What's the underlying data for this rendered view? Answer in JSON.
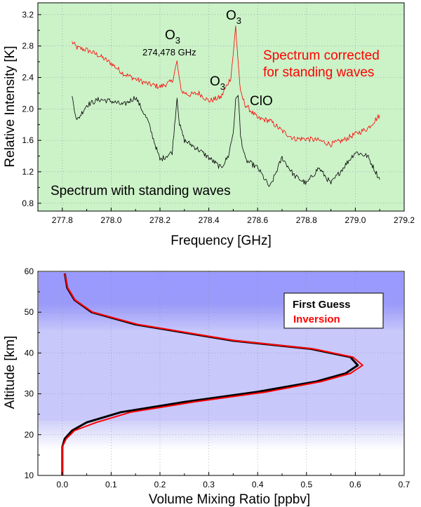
{
  "chart_data": [
    {
      "type": "line",
      "xlabel": "Frequency [GHz]",
      "ylabel": "Relative Intensity [K]",
      "xlim": [
        277.7,
        279.2
      ],
      "ylim": [
        0.7,
        3.35
      ],
      "xticks": [
        277.8,
        278.0,
        278.2,
        278.4,
        278.6,
        278.8,
        279.0,
        279.2
      ],
      "xtick_labels": [
        "277.8",
        "278.0",
        "278.2",
        "278.4",
        "278.6",
        "278.8",
        "279.0",
        "279.2"
      ],
      "yticks": [
        0.8,
        1.2,
        1.6,
        2.0,
        2.4,
        2.8,
        3.2
      ],
      "ytick_labels": [
        "0.8",
        "1.2",
        "1.6",
        "2.0",
        "2.4",
        "2.8",
        "3.2"
      ],
      "background": "#ccf2c8",
      "grid": "dotted",
      "annotations": [
        {
          "id": "o3_main",
          "text": "O",
          "sub": "3",
          "color": "#000000"
        },
        {
          "id": "o3_left",
          "text": "O",
          "sub": "3",
          "color": "#000000"
        },
        {
          "id": "freq",
          "text": "274,478 GHz",
          "color": "#000000"
        },
        {
          "id": "o3_mid",
          "text": "O",
          "sub": "3",
          "color": "#000000"
        },
        {
          "id": "clo",
          "text": "ClO",
          "color": "#000000"
        },
        {
          "id": "corrected1",
          "text": "Spectrum corrected",
          "color": "#ff0000"
        },
        {
          "id": "corrected2",
          "text": "for standing waves",
          "color": "#ff0000"
        },
        {
          "id": "standing",
          "text": "Spectrum with standing waves",
          "color": "#000000"
        }
      ],
      "series": [
        {
          "name": "Spectrum corrected for standing waves",
          "color": "#ff0000",
          "x": [
            277.84,
            277.86,
            277.9,
            277.95,
            278.0,
            278.05,
            278.1,
            278.15,
            278.2,
            278.25,
            278.27,
            278.28,
            278.29,
            278.32,
            278.36,
            278.4,
            278.45,
            278.49,
            278.5,
            278.51,
            278.52,
            278.53,
            278.55,
            278.6,
            278.65,
            278.7,
            278.75,
            278.8,
            278.85,
            278.9,
            278.95,
            279.0,
            279.05,
            279.1
          ],
          "y": [
            2.85,
            2.78,
            2.75,
            2.68,
            2.58,
            2.45,
            2.38,
            2.32,
            2.28,
            2.35,
            2.6,
            2.35,
            2.22,
            2.18,
            2.2,
            2.1,
            2.15,
            2.4,
            2.7,
            3.05,
            2.6,
            2.2,
            2.05,
            1.88,
            1.85,
            1.72,
            1.62,
            1.62,
            1.6,
            1.55,
            1.6,
            1.68,
            1.75,
            1.92
          ]
        },
        {
          "name": "Spectrum with standing waves",
          "color": "#000000",
          "x": [
            277.84,
            277.86,
            277.9,
            277.95,
            278.0,
            278.05,
            278.1,
            278.15,
            278.2,
            278.25,
            278.27,
            278.28,
            278.3,
            278.35,
            278.4,
            278.45,
            278.48,
            278.5,
            278.51,
            278.52,
            278.53,
            278.55,
            278.6,
            278.65,
            278.7,
            278.75,
            278.8,
            278.85,
            278.9,
            278.95,
            279.0,
            279.05,
            279.1
          ],
          "y": [
            2.15,
            1.85,
            2.05,
            2.12,
            2.1,
            2.05,
            2.15,
            1.85,
            1.35,
            1.45,
            2.15,
            1.8,
            1.6,
            1.5,
            1.38,
            1.25,
            1.4,
            1.7,
            2.1,
            2.2,
            1.65,
            1.35,
            1.25,
            1.0,
            1.38,
            1.15,
            1.05,
            1.25,
            1.05,
            1.25,
            1.45,
            1.4,
            1.1
          ]
        }
      ]
    },
    {
      "type": "line",
      "xlabel": "Volume Mixing Ratio [ppbv]",
      "ylabel": "Altitude [km]",
      "xlim": [
        -0.05,
        0.7
      ],
      "ylim": [
        10,
        60
      ],
      "xticks": [
        0.0,
        0.1,
        0.2,
        0.3,
        0.4,
        0.5,
        0.6,
        0.7
      ],
      "xtick_labels": [
        "0.0",
        "0.1",
        "0.2",
        "0.3",
        "0.4",
        "0.5",
        "0.6",
        "0.7"
      ],
      "yticks": [
        10,
        20,
        30,
        40,
        50,
        60
      ],
      "ytick_labels": [
        "10",
        "20",
        "30",
        "40",
        "50",
        "60"
      ],
      "grid": "dotted",
      "legend": {
        "position": "upper-right",
        "entries": [
          {
            "label": "First Guess",
            "color": "#000000"
          },
          {
            "label": "Inversion",
            "color": "#ff0000"
          }
        ]
      },
      "series": [
        {
          "name": "First Guess",
          "color": "#000000",
          "x": [
            0.0,
            0.0,
            0.0,
            0.005,
            0.02,
            0.05,
            0.12,
            0.25,
            0.4,
            0.52,
            0.58,
            0.605,
            0.59,
            0.51,
            0.35,
            0.15,
            0.06,
            0.025,
            0.01,
            0.005
          ],
          "y": [
            10,
            14,
            17,
            19,
            21,
            23,
            25.5,
            28,
            30.5,
            33,
            35,
            37,
            39,
            41,
            43,
            47,
            50,
            53,
            56,
            59.5
          ]
        },
        {
          "name": "Inversion",
          "color": "#ff0000",
          "x": [
            0.0,
            0.0,
            0.0,
            0.008,
            0.025,
            0.07,
            0.14,
            0.27,
            0.42,
            0.53,
            0.59,
            0.615,
            0.595,
            0.515,
            0.355,
            0.155,
            0.062,
            0.026,
            0.011,
            0.005
          ],
          "y": [
            10,
            14,
            17,
            19,
            21,
            23,
            25.5,
            28,
            30.5,
            33,
            35,
            37,
            39,
            41,
            43,
            47,
            50,
            53,
            56,
            59.5
          ]
        }
      ]
    }
  ]
}
